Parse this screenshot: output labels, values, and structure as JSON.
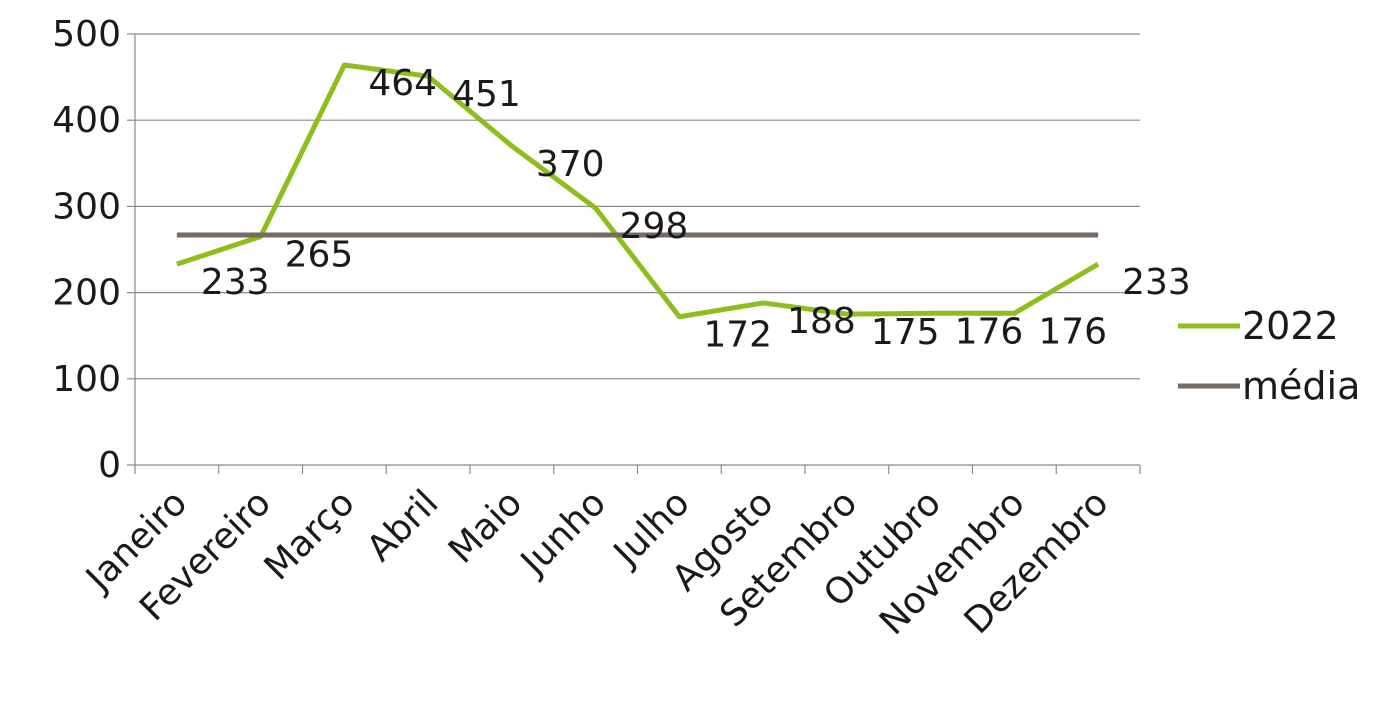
{
  "chart_data": {
    "type": "line",
    "title": "",
    "xlabel": "",
    "ylabel": "",
    "categories": [
      "Janeiro",
      "Fevereiro",
      "Março",
      "Abril",
      "Maio",
      "Junho",
      "Julho",
      "Agosto",
      "Setembro",
      "Outubro",
      "Novembro",
      "Dezembro"
    ],
    "ylim": [
      0,
      500
    ],
    "yticks": [
      0,
      100,
      200,
      300,
      400,
      500
    ],
    "grid": true,
    "legend_position": "right",
    "series": [
      {
        "name": "2022",
        "color": "#8DBE1E",
        "values": [
          233,
          265,
          464,
          451,
          370,
          298,
          172,
          188,
          175,
          176,
          176,
          233
        ],
        "data_labels": [
          "233",
          "265",
          "464",
          "451",
          "370",
          "298",
          "172",
          "188",
          "175",
          "176",
          "176",
          "233"
        ]
      },
      {
        "name": "média",
        "color": "#766A62",
        "values": [
          266.75,
          266.75,
          266.75,
          266.75,
          266.75,
          266.75,
          266.75,
          266.75,
          266.75,
          266.75,
          266.75,
          266.75
        ]
      }
    ]
  }
}
